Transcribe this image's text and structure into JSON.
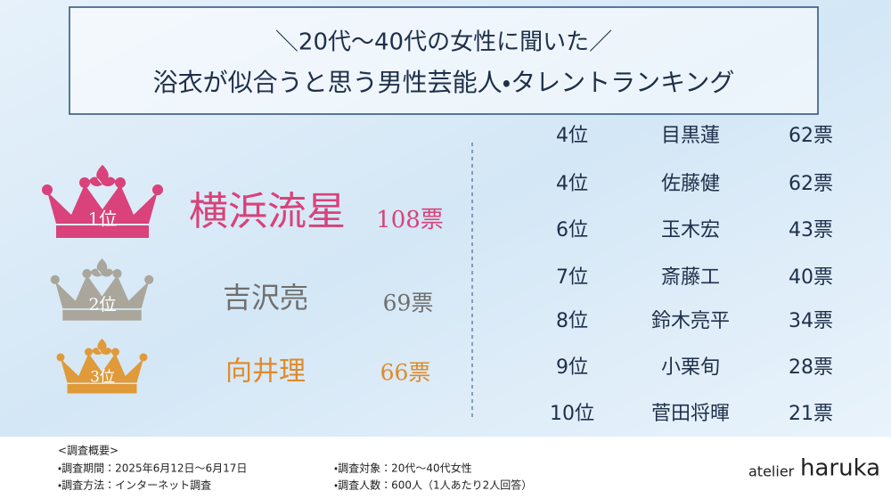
{
  "header": {
    "title_line1": "＼20代〜40代の女性に聞いた／",
    "title_line2": "浴衣が似合うと思う男性芸能人・タレントランキング"
  },
  "top3": [
    {
      "rank": "1位",
      "name": "横浜流星",
      "votes": "108票"
    },
    {
      "rank": "2位",
      "name": "吉沢亮",
      "votes": "69票"
    },
    {
      "rank": "3位",
      "name": "向井理",
      "votes": "66票"
    }
  ],
  "ranking": [
    {
      "rank": "4位",
      "name": "目黒蓮",
      "votes": "62票"
    },
    {
      "rank": "4位",
      "name": "佐藤健",
      "votes": "62票"
    },
    {
      "rank": "6位",
      "name": "玉木宏",
      "votes": "43票"
    },
    {
      "rank": "7位",
      "name": "斎藤工",
      "votes": "40票"
    },
    {
      "rank": "8位",
      "name": "鈴木亮平",
      "votes": "34票"
    },
    {
      "rank": "9位",
      "name": "小栗旬",
      "votes": "28票"
    },
    {
      "rank": "10位",
      "name": "菅田将暉",
      "votes": "21票"
    }
  ],
  "footer": {
    "heading": "<調査概要>",
    "period": "・調査期間：2025年6月12日～6月17日",
    "method": "・調査方法：インターネット調査",
    "target": "・調査対象：20代～40代女性",
    "count": "・調査人数：600人（1人あたり2人回答）"
  },
  "logo": {
    "small": "atelier",
    "large": "haruka"
  }
}
